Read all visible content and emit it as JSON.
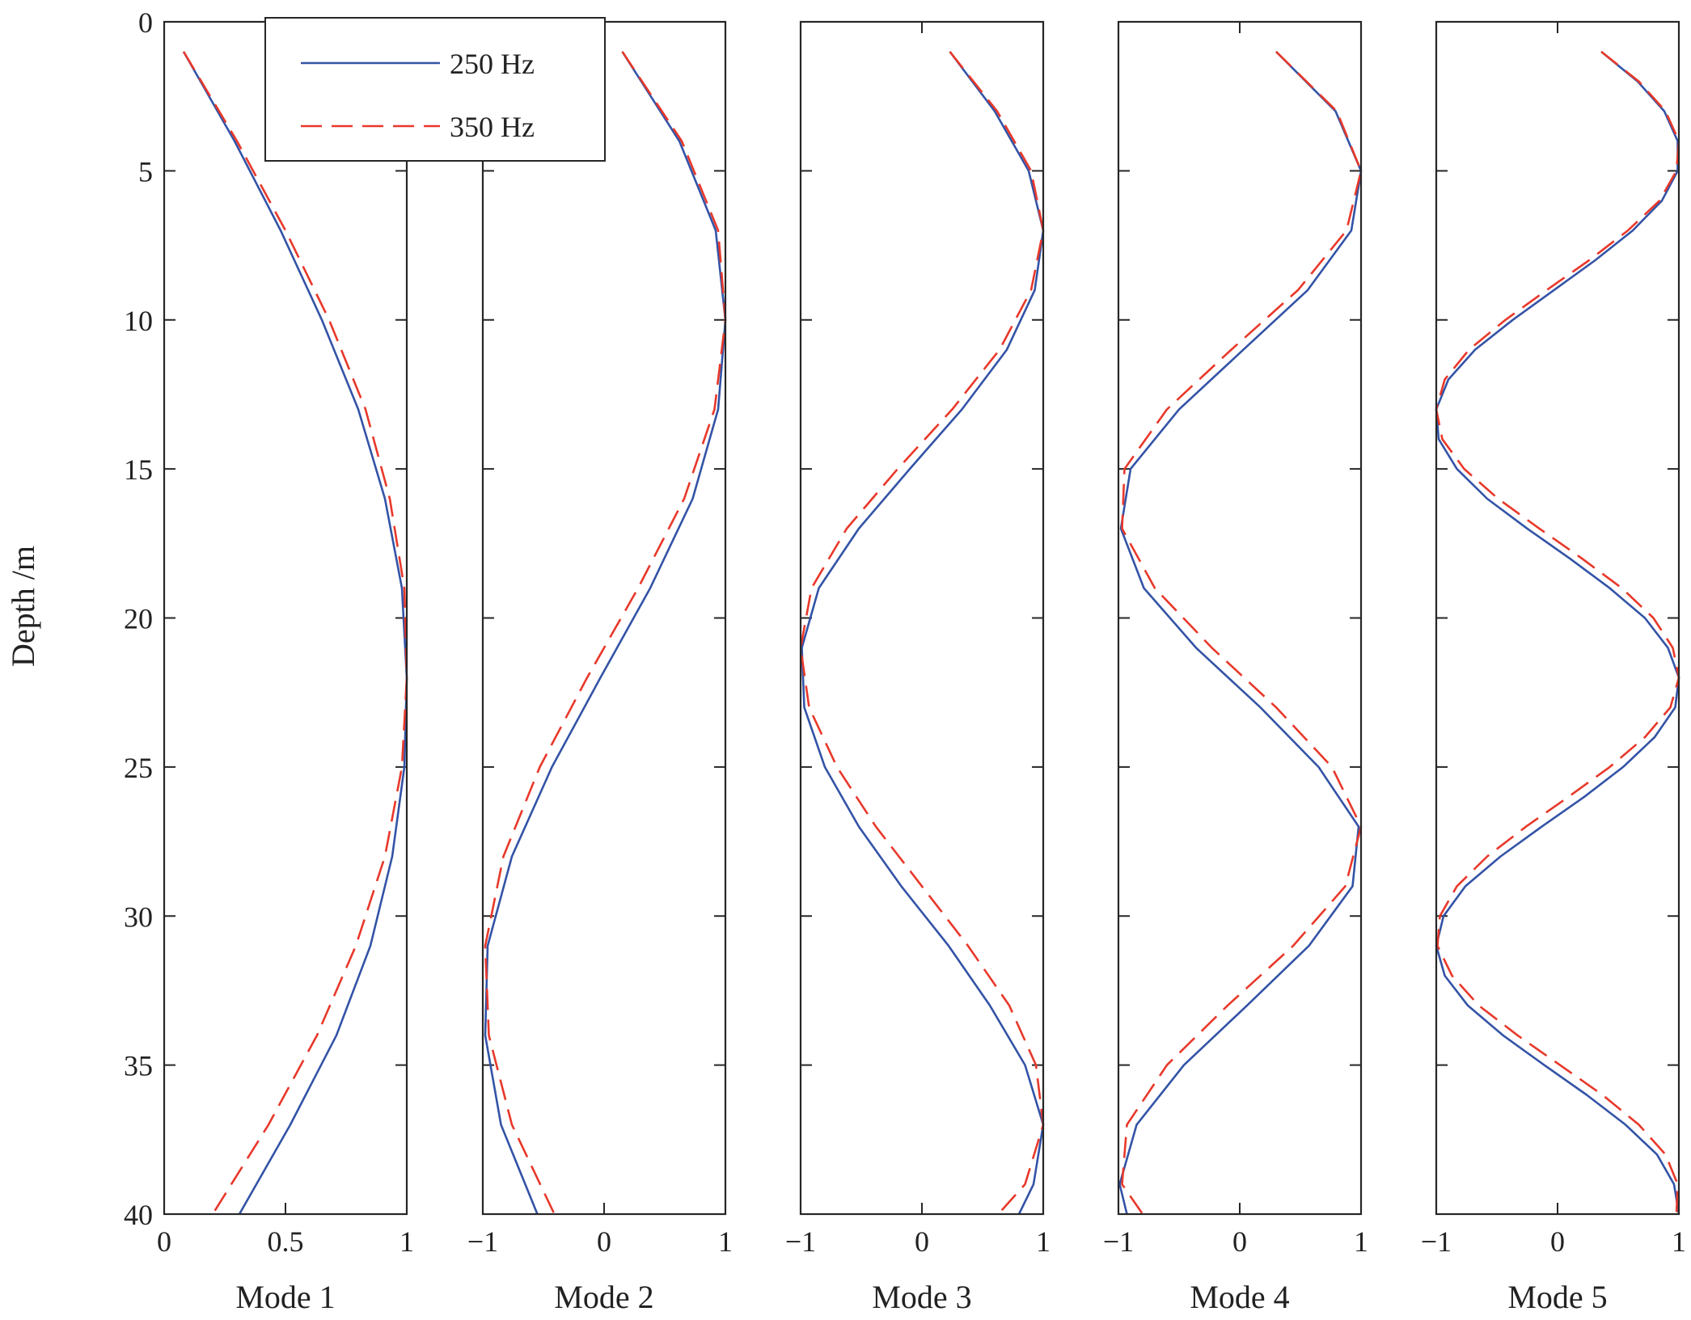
{
  "figure": {
    "ylabel": "Depth /m",
    "legend": {
      "placement": "top-left",
      "entries": [
        {
          "label": "250 Hz",
          "color": "#3353a6",
          "style": "solid"
        },
        {
          "label": "350 Hz",
          "color": "#e8382a",
          "style": "dashed"
        }
      ]
    }
  },
  "chart_data": [
    {
      "type": "line",
      "xlabel": "Mode 1",
      "ylabel": "Depth /m",
      "xlim": [
        0,
        1
      ],
      "ylim": [
        40,
        0
      ],
      "xticks": [
        "0",
        "0.5",
        "1"
      ],
      "yticks": [
        "0",
        "5",
        "10",
        "15",
        "20",
        "25",
        "30",
        "35",
        "40"
      ],
      "grid": false,
      "x": [
        1,
        4,
        7,
        10,
        13,
        16,
        19,
        22,
        25,
        28,
        31,
        34,
        37,
        40
      ],
      "series": [
        {
          "name": "250 Hz",
          "values": [
            0.08,
            0.29,
            0.48,
            0.65,
            0.8,
            0.91,
            0.98,
            1.0,
            0.99,
            0.94,
            0.85,
            0.71,
            0.52,
            0.31
          ]
        },
        {
          "name": "350 Hz",
          "values": [
            0.08,
            0.3,
            0.5,
            0.68,
            0.83,
            0.93,
            0.99,
            1.0,
            0.98,
            0.91,
            0.79,
            0.63,
            0.43,
            0.2
          ]
        }
      ]
    },
    {
      "type": "line",
      "xlabel": "Mode 2",
      "xlim": [
        -1,
        1
      ],
      "ylim": [
        40,
        0
      ],
      "xticks": [
        "−1",
        "0",
        "1"
      ],
      "grid": false,
      "x": [
        1,
        4,
        7,
        10,
        13,
        16,
        19,
        22,
        25,
        28,
        31,
        34,
        37,
        40
      ],
      "series": [
        {
          "name": "250 Hz",
          "values": [
            0.15,
            0.62,
            0.92,
            1.0,
            0.94,
            0.73,
            0.38,
            -0.03,
            -0.43,
            -0.76,
            -0.96,
            -0.98,
            -0.85,
            -0.55
          ]
        },
        {
          "name": "350 Hz",
          "values": [
            0.15,
            0.64,
            0.94,
            1.0,
            0.91,
            0.66,
            0.28,
            -0.14,
            -0.53,
            -0.83,
            -0.98,
            -0.95,
            -0.76,
            -0.41
          ]
        }
      ]
    },
    {
      "type": "line",
      "xlabel": "Mode 3",
      "xlim": [
        -1,
        1
      ],
      "ylim": [
        40,
        0
      ],
      "xticks": [
        "−1",
        "0",
        "1"
      ],
      "grid": false,
      "x": [
        1,
        3,
        5,
        7,
        9,
        11,
        13,
        15,
        17,
        19,
        21,
        23,
        25,
        27,
        29,
        31,
        33,
        35,
        37,
        39,
        40
      ],
      "series": [
        {
          "name": "250 Hz",
          "values": [
            0.23,
            0.6,
            0.88,
            1.0,
            0.93,
            0.7,
            0.33,
            -0.1,
            -0.52,
            -0.85,
            -0.99,
            -0.97,
            -0.8,
            -0.52,
            -0.17,
            0.22,
            0.56,
            0.85,
            1.0,
            0.92,
            0.8
          ]
        },
        {
          "name": "350 Hz",
          "values": [
            0.23,
            0.62,
            0.9,
            1.0,
            0.9,
            0.64,
            0.25,
            -0.2,
            -0.62,
            -0.91,
            -1.0,
            -0.93,
            -0.7,
            -0.38,
            0.0,
            0.38,
            0.72,
            0.94,
            1.0,
            0.85,
            0.63
          ]
        }
      ]
    },
    {
      "type": "line",
      "xlabel": "Mode 4",
      "xlim": [
        -1,
        1
      ],
      "ylim": [
        40,
        0
      ],
      "xticks": [
        "−1",
        "0",
        "1"
      ],
      "grid": false,
      "x": [
        1,
        3,
        5,
        7,
        9,
        11,
        13,
        15,
        17,
        19,
        21,
        23,
        25,
        27,
        29,
        31,
        33,
        35,
        37,
        39,
        40
      ],
      "series": [
        {
          "name": "250 Hz",
          "values": [
            0.3,
            0.79,
            1.0,
            0.92,
            0.56,
            0.03,
            -0.5,
            -0.9,
            -0.98,
            -0.79,
            -0.36,
            0.17,
            0.65,
            0.98,
            0.93,
            0.57,
            0.06,
            -0.46,
            -0.85,
            -0.99,
            -0.93
          ]
        },
        {
          "name": "350 Hz",
          "values": [
            0.3,
            0.8,
            1.0,
            0.88,
            0.48,
            -0.07,
            -0.6,
            -0.95,
            -0.97,
            -0.7,
            -0.23,
            0.3,
            0.76,
            1.0,
            0.87,
            0.44,
            -0.1,
            -0.6,
            -0.93,
            -0.97,
            -0.8
          ]
        }
      ]
    },
    {
      "type": "line",
      "xlabel": "Mode 5",
      "xlim": [
        -1,
        1
      ],
      "ylim": [
        40,
        0
      ],
      "xticks": [
        "−1",
        "0",
        "1"
      ],
      "grid": false,
      "x": [
        1,
        2,
        3,
        4,
        5,
        6,
        7,
        8,
        9,
        10,
        11,
        12,
        13,
        14,
        15,
        16,
        17,
        18,
        19,
        20,
        21,
        22,
        23,
        24,
        25,
        26,
        27,
        28,
        29,
        30,
        31,
        32,
        33,
        34,
        35,
        36,
        37,
        38,
        39,
        40
      ],
      "series": [
        {
          "name": "250 Hz",
          "values": [
            0.36,
            0.66,
            0.88,
            0.99,
            0.99,
            0.86,
            0.62,
            0.31,
            -0.03,
            -0.37,
            -0.68,
            -0.9,
            -1.0,
            -0.98,
            -0.83,
            -0.58,
            -0.25,
            0.1,
            0.43,
            0.72,
            0.91,
            1.0,
            0.97,
            0.8,
            0.54,
            0.22,
            -0.13,
            -0.47,
            -0.76,
            -0.94,
            -1.0,
            -0.93,
            -0.74,
            -0.45,
            -0.11,
            0.24,
            0.56,
            0.82,
            0.96,
            1.0
          ]
        },
        {
          "name": "350 Hz",
          "values": [
            0.36,
            0.67,
            0.89,
            1.0,
            0.98,
            0.84,
            0.58,
            0.26,
            -0.09,
            -0.43,
            -0.73,
            -0.93,
            -1.0,
            -0.95,
            -0.77,
            -0.49,
            -0.15,
            0.2,
            0.53,
            0.79,
            0.95,
            1.0,
            0.93,
            0.72,
            0.43,
            0.09,
            -0.26,
            -0.58,
            -0.83,
            -0.97,
            -0.99,
            -0.87,
            -0.65,
            -0.33,
            0.02,
            0.37,
            0.67,
            0.89,
            0.99,
            0.98
          ]
        }
      ]
    }
  ]
}
